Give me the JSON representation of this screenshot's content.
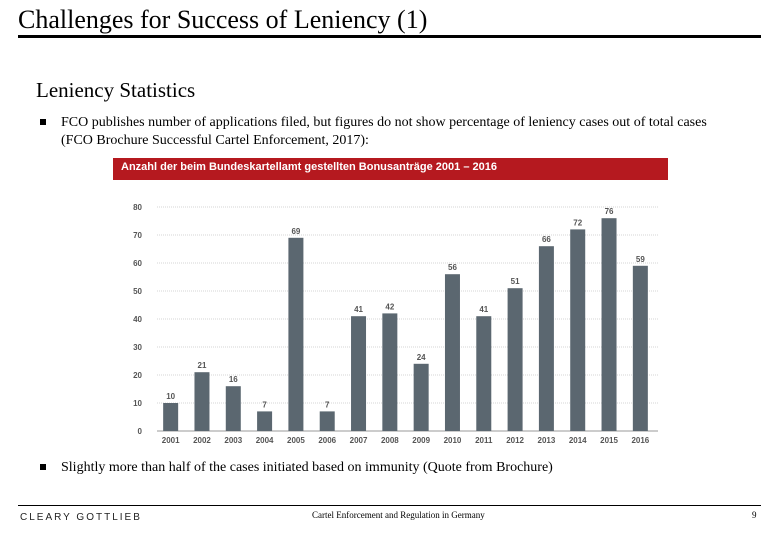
{
  "slide": {
    "title": "Challenges for Success of Leniency (1)",
    "subtitle": "Leniency Statistics",
    "bullets": [
      "FCO publishes number of applications filed, but figures do not show percentage of leniency cases out of total cases (FCO Brochure Successful Cartel Enforcement, 2017):",
      "Slightly more than half of the cases initiated based on immunity (Quote from Brochure)"
    ]
  },
  "footer": {
    "logo": "CLEARY GOTTLIEB",
    "center": "Cartel Enforcement and Regulation in Germany",
    "page": "9"
  },
  "colors": {
    "header": "#b5191f",
    "bar": "#5b6770",
    "grid": "#d4d4d4"
  },
  "chart_data": {
    "type": "bar",
    "title": "Anzahl der beim Bundeskartellamt gestellten Bonusanträge 2001 – 2016",
    "categories": [
      "2001",
      "2002",
      "2003",
      "2004",
      "2005",
      "2006",
      "2007",
      "2008",
      "2009",
      "2010",
      "2011",
      "2012",
      "2013",
      "2014",
      "2015",
      "2016"
    ],
    "values": [
      10,
      21,
      16,
      7,
      69,
      7,
      41,
      42,
      24,
      56,
      41,
      51,
      66,
      72,
      76,
      59
    ],
    "yticks": [
      0,
      10,
      20,
      30,
      40,
      50,
      60,
      70,
      80
    ],
    "ylim": [
      0,
      80
    ],
    "xlabel": "",
    "ylabel": "",
    "grid": true
  }
}
